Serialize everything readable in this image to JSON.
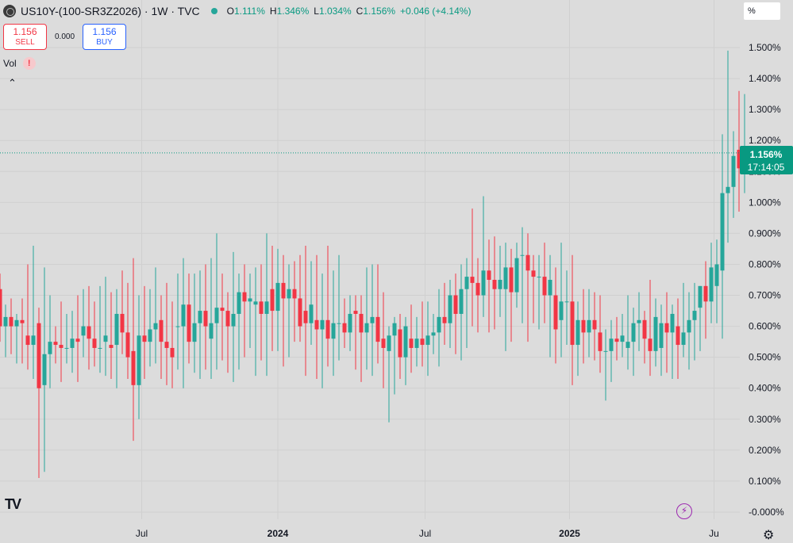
{
  "header": {
    "symbol": "US10Y-(100-SR3Z2026) · 1W · TVC",
    "ohlc": [
      {
        "k": "O",
        "v": "1.111%"
      },
      {
        "k": "H",
        "v": "1.346%"
      },
      {
        "k": "L",
        "v": "1.034%"
      },
      {
        "k": "C",
        "v": "1.156%"
      },
      {
        "k": "",
        "v": "+0.046 (+4.14%)"
      }
    ]
  },
  "scale_mode": "%",
  "trade": {
    "sell_price": "1.156",
    "sell_label": "SELL",
    "spread": "0.000",
    "buy_price": "1.156",
    "buy_label": "BUY"
  },
  "vol_label": "Vol",
  "last_price": {
    "value": "1.156%",
    "countdown": "17:14:05"
  },
  "colors": {
    "up": "#26a69a",
    "down": "#f23645",
    "accent": "#089981"
  },
  "chart_data": {
    "type": "candlestick",
    "interval": "weekly",
    "ylim": [
      0.0,
      1.5
    ],
    "y_ticks": [
      "1.500%",
      "1.400%",
      "1.300%",
      "1.200%",
      "1.100%",
      "1.000%",
      "0.900%",
      "0.800%",
      "0.700%",
      "0.600%",
      "0.500%",
      "0.400%",
      "0.300%",
      "0.200%",
      "0.100%",
      "-0.000%"
    ],
    "y_tick_values": [
      1.5,
      1.4,
      1.3,
      1.2,
      1.1,
      1.0,
      0.9,
      0.8,
      0.7,
      0.6,
      0.5,
      0.4,
      0.3,
      0.2,
      0.1,
      0.0
    ],
    "x_ticks": [
      "Jul",
      "2024",
      "Jul",
      "2025",
      "Ju"
    ],
    "x_tick_bold": [
      false,
      true,
      false,
      true,
      false
    ],
    "x_tick_positions": [
      25.5,
      50.0,
      76.5,
      102.5,
      128.5
    ],
    "ohlc": [
      [
        0.72,
        0.77,
        0.55,
        0.6
      ],
      [
        0.6,
        0.67,
        0.5,
        0.63
      ],
      [
        0.63,
        0.69,
        0.51,
        0.6
      ],
      [
        0.6,
        0.64,
        0.48,
        0.62
      ],
      [
        0.62,
        0.69,
        0.48,
        0.61
      ],
      [
        0.57,
        0.8,
        0.46,
        0.54
      ],
      [
        0.54,
        0.86,
        0.43,
        0.57
      ],
      [
        0.61,
        0.66,
        0.11,
        0.4
      ],
      [
        0.41,
        0.79,
        0.13,
        0.51
      ],
      [
        0.51,
        0.7,
        0.4,
        0.55
      ],
      [
        0.55,
        0.6,
        0.48,
        0.54
      ],
      [
        0.54,
        0.68,
        0.42,
        0.53
      ],
      [
        0.53,
        0.64,
        0.48,
        0.53
      ],
      [
        0.53,
        0.65,
        0.45,
        0.56
      ],
      [
        0.56,
        0.7,
        0.42,
        0.55
      ],
      [
        0.57,
        0.72,
        0.5,
        0.6
      ],
      [
        0.6,
        0.73,
        0.46,
        0.56
      ],
      [
        0.56,
        0.68,
        0.47,
        0.53
      ],
      [
        0.53,
        0.73,
        0.45,
        0.53
      ],
      [
        0.55,
        0.76,
        0.44,
        0.57
      ],
      [
        0.54,
        0.71,
        0.43,
        0.53
      ],
      [
        0.54,
        0.72,
        0.4,
        0.64
      ],
      [
        0.64,
        0.78,
        0.51,
        0.58
      ],
      [
        0.58,
        0.74,
        0.43,
        0.5
      ],
      [
        0.52,
        0.82,
        0.23,
        0.41
      ],
      [
        0.41,
        0.7,
        0.3,
        0.57
      ],
      [
        0.57,
        0.73,
        0.43,
        0.55
      ],
      [
        0.55,
        0.72,
        0.47,
        0.59
      ],
      [
        0.59,
        0.79,
        0.48,
        0.61
      ],
      [
        0.62,
        0.7,
        0.43,
        0.55
      ],
      [
        0.55,
        0.74,
        0.41,
        0.53
      ],
      [
        0.53,
        0.68,
        0.4,
        0.5
      ],
      [
        0.6,
        0.77,
        0.46,
        0.6
      ],
      [
        0.6,
        0.82,
        0.4,
        0.67
      ],
      [
        0.67,
        0.77,
        0.48,
        0.55
      ],
      [
        0.55,
        0.77,
        0.45,
        0.61
      ],
      [
        0.61,
        0.78,
        0.43,
        0.65
      ],
      [
        0.65,
        0.8,
        0.46,
        0.6
      ],
      [
        0.56,
        0.82,
        0.43,
        0.61
      ],
      [
        0.61,
        0.9,
        0.46,
        0.66
      ],
      [
        0.66,
        0.77,
        0.49,
        0.65
      ],
      [
        0.65,
        0.71,
        0.45,
        0.6
      ],
      [
        0.6,
        0.84,
        0.42,
        0.64
      ],
      [
        0.64,
        0.77,
        0.46,
        0.71
      ],
      [
        0.71,
        0.8,
        0.5,
        0.68
      ],
      [
        0.68,
        0.77,
        0.53,
        0.69
      ],
      [
        0.67,
        0.79,
        0.44,
        0.68
      ],
      [
        0.68,
        0.8,
        0.49,
        0.64
      ],
      [
        0.64,
        0.9,
        0.44,
        0.68
      ],
      [
        0.72,
        0.86,
        0.52,
        0.65
      ],
      [
        0.65,
        0.85,
        0.52,
        0.74
      ],
      [
        0.74,
        0.83,
        0.47,
        0.69
      ],
      [
        0.69,
        0.8,
        0.5,
        0.72
      ],
      [
        0.72,
        0.81,
        0.55,
        0.69
      ],
      [
        0.69,
        0.83,
        0.55,
        0.6
      ],
      [
        0.65,
        0.86,
        0.44,
        0.61
      ],
      [
        0.61,
        0.81,
        0.54,
        0.67
      ],
      [
        0.62,
        0.83,
        0.43,
        0.59
      ],
      [
        0.59,
        0.77,
        0.4,
        0.62
      ],
      [
        0.62,
        0.86,
        0.47,
        0.56
      ],
      [
        0.56,
        0.78,
        0.44,
        0.61
      ],
      [
        0.61,
        0.83,
        0.49,
        0.61
      ],
      [
        0.61,
        0.69,
        0.53,
        0.58
      ],
      [
        0.58,
        0.7,
        0.52,
        0.64
      ],
      [
        0.65,
        0.7,
        0.46,
        0.64
      ],
      [
        0.64,
        0.7,
        0.42,
        0.58
      ],
      [
        0.58,
        0.79,
        0.46,
        0.61
      ],
      [
        0.61,
        0.8,
        0.44,
        0.63
      ],
      [
        0.63,
        0.8,
        0.48,
        0.55
      ],
      [
        0.56,
        0.71,
        0.4,
        0.53
      ],
      [
        0.52,
        0.6,
        0.29,
        0.57
      ],
      [
        0.57,
        0.63,
        0.38,
        0.61
      ],
      [
        0.59,
        0.64,
        0.43,
        0.5
      ],
      [
        0.5,
        0.63,
        0.41,
        0.6
      ],
      [
        0.56,
        0.67,
        0.45,
        0.53
      ],
      [
        0.53,
        0.63,
        0.47,
        0.56
      ],
      [
        0.56,
        0.68,
        0.47,
        0.54
      ],
      [
        0.54,
        0.68,
        0.44,
        0.57
      ],
      [
        0.57,
        0.64,
        0.51,
        0.58
      ],
      [
        0.58,
        0.72,
        0.47,
        0.63
      ],
      [
        0.63,
        0.74,
        0.54,
        0.61
      ],
      [
        0.61,
        0.75,
        0.53,
        0.7
      ],
      [
        0.7,
        0.77,
        0.51,
        0.64
      ],
      [
        0.64,
        0.8,
        0.49,
        0.72
      ],
      [
        0.72,
        0.82,
        0.53,
        0.76
      ],
      [
        0.76,
        0.98,
        0.6,
        0.74
      ],
      [
        0.74,
        0.82,
        0.58,
        0.7
      ],
      [
        0.7,
        1.02,
        0.63,
        0.78
      ],
      [
        0.78,
        0.88,
        0.58,
        0.75
      ],
      [
        0.75,
        0.89,
        0.59,
        0.72
      ],
      [
        0.72,
        0.86,
        0.63,
        0.75
      ],
      [
        0.72,
        0.87,
        0.52,
        0.79
      ],
      [
        0.79,
        0.85,
        0.55,
        0.71
      ],
      [
        0.71,
        0.87,
        0.66,
        0.82
      ],
      [
        0.83,
        0.92,
        0.61,
        0.83
      ],
      [
        0.83,
        0.9,
        0.55,
        0.78
      ],
      [
        0.78,
        0.83,
        0.61,
        0.76
      ],
      [
        0.76,
        0.83,
        0.59,
        0.76
      ],
      [
        0.76,
        0.87,
        0.61,
        0.7
      ],
      [
        0.7,
        0.83,
        0.5,
        0.75
      ],
      [
        0.7,
        0.79,
        0.48,
        0.59
      ],
      [
        0.62,
        0.87,
        0.5,
        0.68
      ],
      [
        0.68,
        0.78,
        0.54,
        0.68
      ],
      [
        0.68,
        0.83,
        0.41,
        0.54
      ],
      [
        0.54,
        0.68,
        0.44,
        0.62
      ],
      [
        0.62,
        0.72,
        0.48,
        0.58
      ],
      [
        0.58,
        0.72,
        0.5,
        0.62
      ],
      [
        0.62,
        0.71,
        0.49,
        0.59
      ],
      [
        0.58,
        0.7,
        0.45,
        0.52
      ],
      [
        0.52,
        0.59,
        0.36,
        0.52
      ],
      [
        0.52,
        0.62,
        0.42,
        0.56
      ],
      [
        0.56,
        0.63,
        0.49,
        0.55
      ],
      [
        0.55,
        0.64,
        0.5,
        0.57
      ],
      [
        0.53,
        0.7,
        0.46,
        0.55
      ],
      [
        0.55,
        0.66,
        0.44,
        0.61
      ],
      [
        0.61,
        0.71,
        0.52,
        0.62
      ],
      [
        0.62,
        0.65,
        0.48,
        0.56
      ],
      [
        0.56,
        0.75,
        0.44,
        0.52
      ],
      [
        0.52,
        0.69,
        0.47,
        0.63
      ],
      [
        0.53,
        0.67,
        0.44,
        0.61
      ],
      [
        0.61,
        0.71,
        0.45,
        0.58
      ],
      [
        0.58,
        0.67,
        0.43,
        0.64
      ],
      [
        0.6,
        0.69,
        0.43,
        0.54
      ],
      [
        0.54,
        0.74,
        0.5,
        0.58
      ],
      [
        0.58,
        0.71,
        0.46,
        0.62
      ],
      [
        0.62,
        0.74,
        0.49,
        0.65
      ],
      [
        0.66,
        0.73,
        0.52,
        0.73
      ],
      [
        0.73,
        0.81,
        0.56,
        0.68
      ],
      [
        0.68,
        0.87,
        0.61,
        0.79
      ],
      [
        0.73,
        0.88,
        0.61,
        0.8
      ],
      [
        0.78,
        1.22,
        0.56,
        1.03
      ],
      [
        1.03,
        1.49,
        0.87,
        1.05
      ],
      [
        1.05,
        1.23,
        0.95,
        1.15
      ],
      [
        1.17,
        1.36,
        0.97,
        1.11
      ],
      [
        1.11,
        1.35,
        1.03,
        1.16
      ]
    ]
  }
}
